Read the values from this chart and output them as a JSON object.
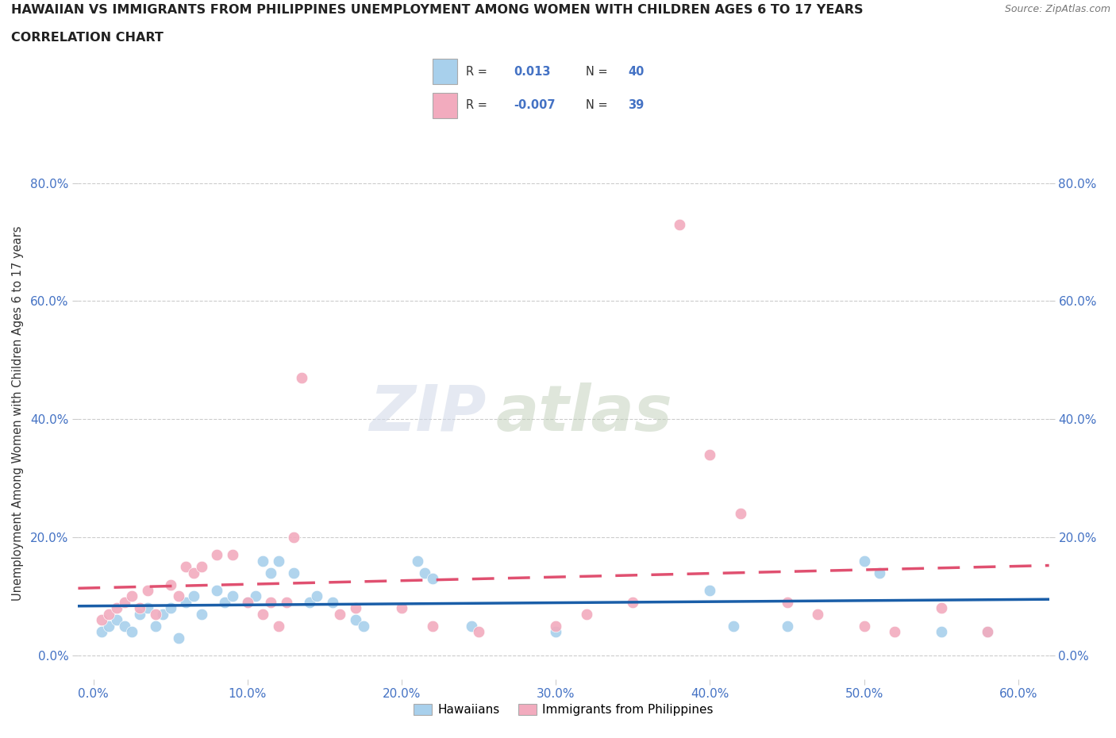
{
  "title_line1": "HAWAIIAN VS IMMIGRANTS FROM PHILIPPINES UNEMPLOYMENT AMONG WOMEN WITH CHILDREN AGES 6 TO 17 YEARS",
  "title_line2": "CORRELATION CHART",
  "source": "Source: ZipAtlas.com",
  "ylabel_label": "Unemployment Among Women with Children Ages 6 to 17 years",
  "watermark_zip": "ZIP",
  "watermark_atlas": "atlas",
  "legend_label1": "Hawaiians",
  "legend_label2": "Immigrants from Philippines",
  "r1": 0.013,
  "n1": 40,
  "r2": -0.007,
  "n2": 39,
  "color_blue": "#A8D0EC",
  "color_pink": "#F2ABBE",
  "trendline_blue": "#1A5EA8",
  "trendline_pink": "#E05070",
  "hawaiian_x": [
    0.005,
    0.01,
    0.015,
    0.02,
    0.025,
    0.03,
    0.035,
    0.04,
    0.045,
    0.05,
    0.055,
    0.06,
    0.065,
    0.07,
    0.08,
    0.085,
    0.09,
    0.1,
    0.105,
    0.11,
    0.115,
    0.12,
    0.13,
    0.14,
    0.145,
    0.155,
    0.17,
    0.175,
    0.21,
    0.215,
    0.22,
    0.245,
    0.3,
    0.4,
    0.415,
    0.45,
    0.5,
    0.51,
    0.55,
    0.58
  ],
  "hawaiian_y": [
    0.04,
    0.05,
    0.06,
    0.05,
    0.04,
    0.07,
    0.08,
    0.05,
    0.07,
    0.08,
    0.03,
    0.09,
    0.1,
    0.07,
    0.11,
    0.09,
    0.1,
    0.09,
    0.1,
    0.16,
    0.14,
    0.16,
    0.14,
    0.09,
    0.1,
    0.09,
    0.06,
    0.05,
    0.16,
    0.14,
    0.13,
    0.05,
    0.04,
    0.11,
    0.05,
    0.05,
    0.16,
    0.14,
    0.04,
    0.04
  ],
  "philippines_x": [
    0.005,
    0.01,
    0.015,
    0.02,
    0.025,
    0.03,
    0.035,
    0.04,
    0.05,
    0.055,
    0.06,
    0.065,
    0.07,
    0.08,
    0.09,
    0.1,
    0.11,
    0.115,
    0.12,
    0.125,
    0.13,
    0.135,
    0.16,
    0.17,
    0.2,
    0.22,
    0.25,
    0.3,
    0.32,
    0.35,
    0.38,
    0.4,
    0.42,
    0.45,
    0.47,
    0.5,
    0.52,
    0.55,
    0.58
  ],
  "philippines_y": [
    0.06,
    0.07,
    0.08,
    0.09,
    0.1,
    0.08,
    0.11,
    0.07,
    0.12,
    0.1,
    0.15,
    0.14,
    0.15,
    0.17,
    0.17,
    0.09,
    0.07,
    0.09,
    0.05,
    0.09,
    0.2,
    0.47,
    0.07,
    0.08,
    0.08,
    0.05,
    0.04,
    0.05,
    0.07,
    0.09,
    0.73,
    0.34,
    0.24,
    0.09,
    0.07,
    0.05,
    0.04,
    0.08,
    0.04
  ],
  "xlim": [
    -0.01,
    0.62
  ],
  "ylim": [
    -0.04,
    0.86
  ],
  "xtick_vals": [
    0.0,
    0.1,
    0.2,
    0.3,
    0.4,
    0.5,
    0.6
  ],
  "xtick_labels": [
    "0.0%",
    "10.0%",
    "20.0%",
    "30.0%",
    "40.0%",
    "50.0%",
    "60.0%"
  ],
  "ytick_vals": [
    0.0,
    0.2,
    0.4,
    0.6,
    0.8
  ],
  "ytick_labels": [
    "0.0%",
    "20.0%",
    "40.0%",
    "60.0%",
    "80.0%"
  ]
}
